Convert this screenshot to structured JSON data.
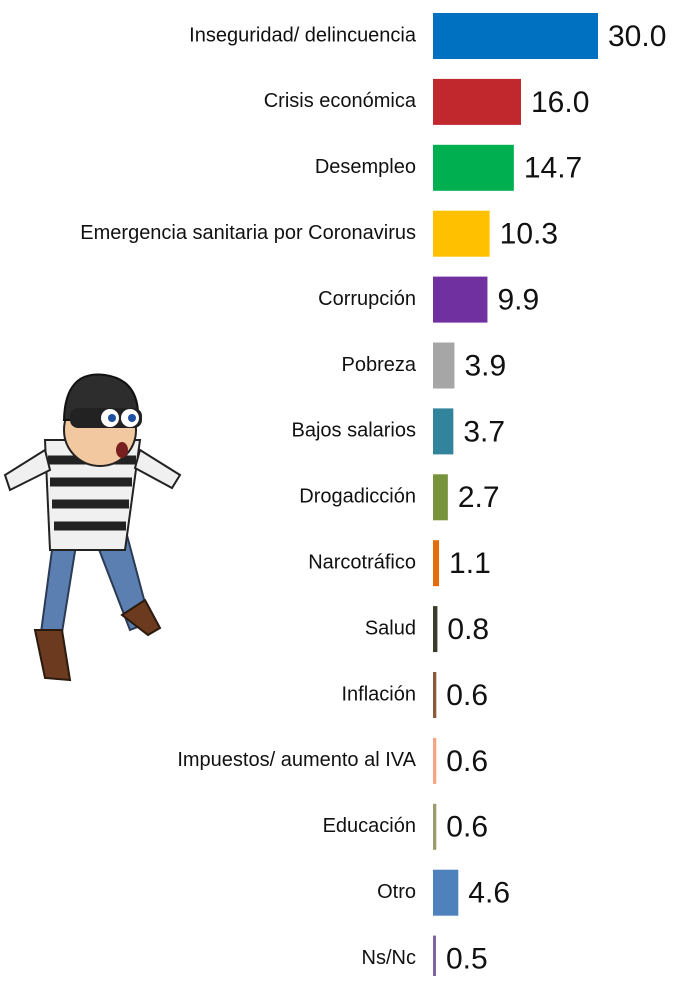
{
  "chart_data": {
    "type": "bar",
    "orientation": "horizontal",
    "categories": [
      "Inseguridad/ delincuencia",
      "Crisis económica",
      "Desempleo",
      "Emergencia sanitaria por Coronavirus",
      "Corrupción",
      "Pobreza",
      "Bajos salarios",
      "Drogadicción",
      "Narcotráfico",
      "Salud",
      "Inflación",
      "Impuestos/ aumento al IVA",
      "Educación",
      "Otro",
      "Ns/Nc"
    ],
    "values": [
      30,
      16,
      14.7,
      10.3,
      9.9,
      3.9,
      3.7,
      2.7,
      1.1,
      0.8,
      0.6,
      0.6,
      0.6,
      4.6,
      0.5
    ],
    "value_labels": [
      "30.0",
      "16.0",
      "14.7",
      "10.3",
      "9.9",
      "3.9",
      "3.7",
      "2.7",
      "1.1",
      "0.8",
      "0.6",
      "0.6",
      "0.6",
      "4.6",
      "0.5"
    ],
    "colors": [
      "#0070c0",
      "#c0282d",
      "#00b050",
      "#ffc000",
      "#7030a0",
      "#a6a6a6",
      "#31849b",
      "#77933c",
      "#e46c0a",
      "#3b3b2a",
      "#8b5a3c",
      "#f4a582",
      "#9c9b6b",
      "#4f81bd",
      "#8064a2"
    ]
  }
}
